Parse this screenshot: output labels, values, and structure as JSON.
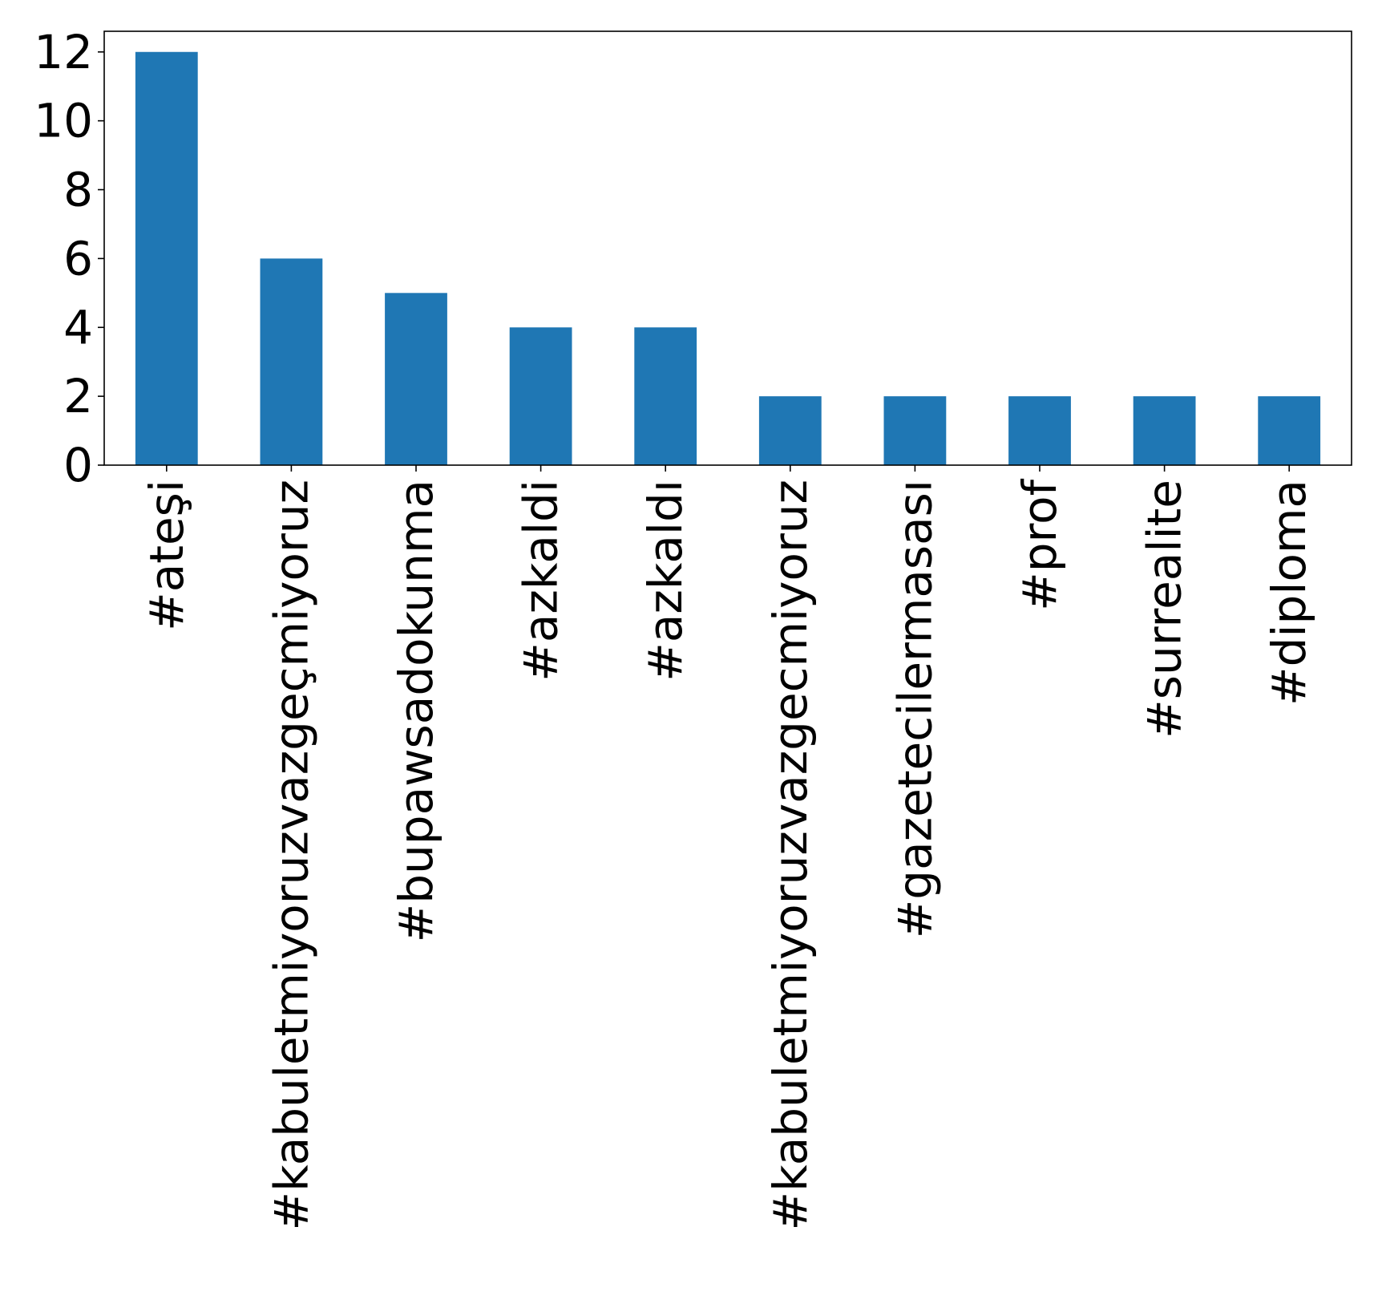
{
  "colors": {
    "bar": "#1f77b4",
    "axis": "#000000",
    "background": "#ffffff"
  },
  "chart_data": {
    "type": "bar",
    "categories": [
      "#ateşi",
      "#kabuletmiyoruzvazgeçmiyoruz",
      "#bupawsadokunma",
      "#azkaldi",
      "#azkaldı",
      "#kabuletmiyoruzvazgecmiyoruz",
      "#gazetecilermasası",
      "#prof",
      "#surrealite",
      "#diploma"
    ],
    "values": [
      12,
      6,
      5,
      4,
      4,
      2,
      2,
      2,
      2,
      2
    ],
    "title": "",
    "xlabel": "",
    "ylabel": "",
    "ylim": [
      0,
      12.6
    ],
    "yticks": [
      0,
      2,
      4,
      6,
      8,
      10,
      12
    ],
    "grid": false,
    "legend": "none"
  }
}
